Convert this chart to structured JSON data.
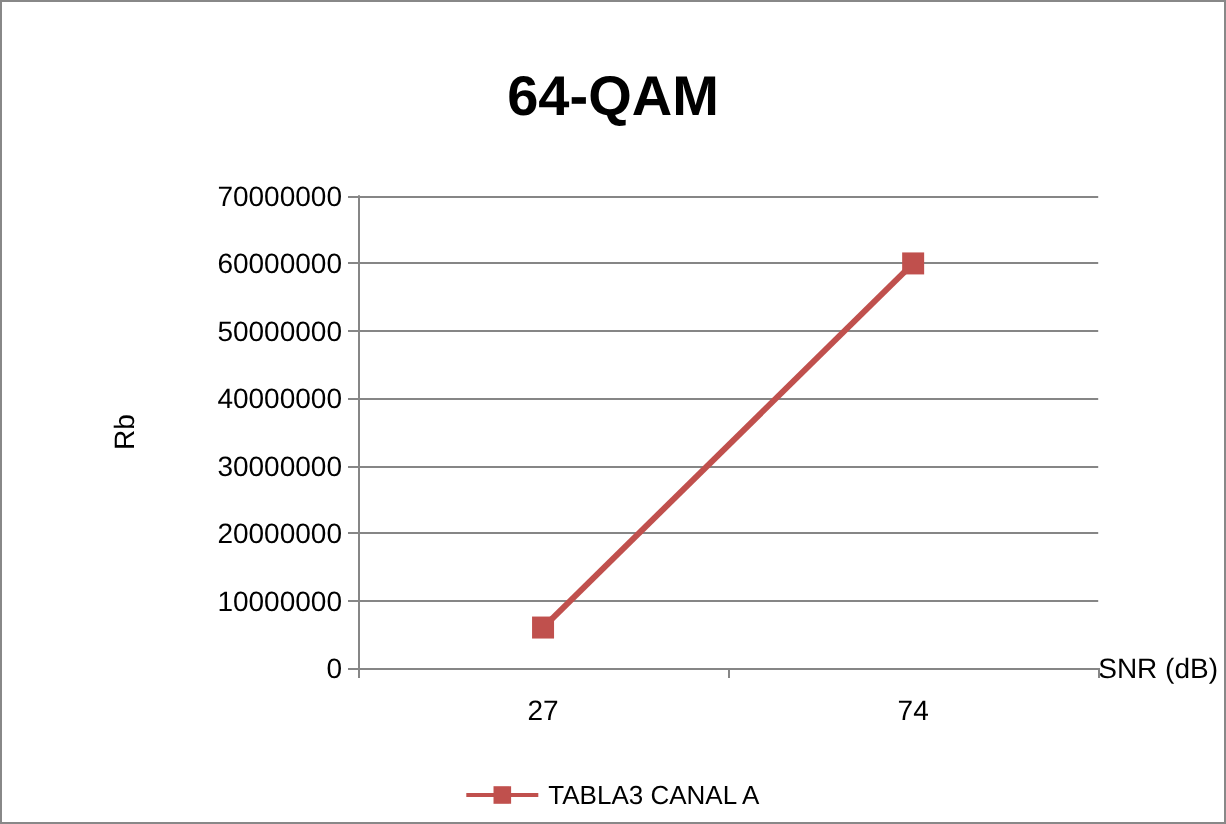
{
  "chart_data": {
    "type": "line",
    "title": "64-QAM",
    "xlabel": "SNR (dB)",
    "ylabel": "Rb",
    "categories": [
      "27",
      "74"
    ],
    "series": [
      {
        "name": "TABLA3 CANAL A",
        "color": "#c0504d",
        "values": [
          6000000,
          60000000
        ]
      }
    ],
    "ylim": [
      0,
      70000000
    ],
    "yticks": [
      0,
      10000000,
      20000000,
      30000000,
      40000000,
      50000000,
      60000000,
      70000000
    ],
    "grid": "y",
    "legend": "bottom",
    "marker": "square",
    "line_style": "solid"
  }
}
